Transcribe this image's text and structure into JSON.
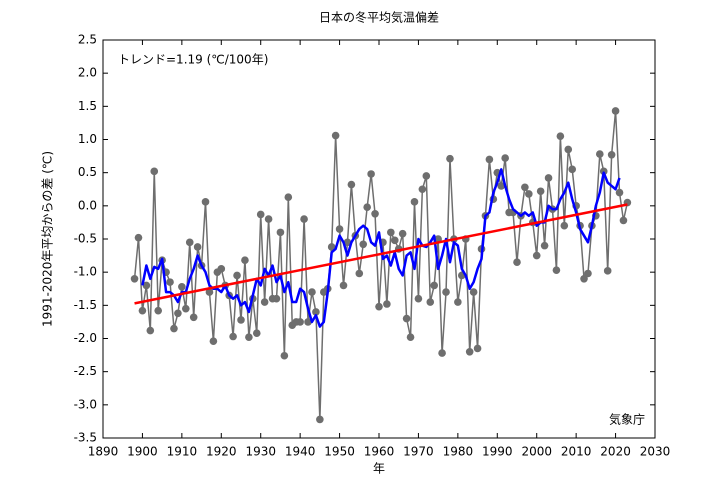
{
  "chart_data": {
    "type": "line",
    "title": "日本の冬平均気温偏差",
    "xlabel": "年",
    "ylabel": "1991-2020年平均からの差 (℃)",
    "annotations": [
      "トレンド=1.19 (℃/100年)",
      "気象庁"
    ],
    "x": [
      1898,
      1899,
      1900,
      1901,
      1902,
      1903,
      1904,
      1905,
      1906,
      1907,
      1908,
      1909,
      1910,
      1911,
      1912,
      1913,
      1914,
      1915,
      1916,
      1917,
      1918,
      1919,
      1920,
      1921,
      1922,
      1923,
      1924,
      1925,
      1926,
      1927,
      1928,
      1929,
      1930,
      1931,
      1932,
      1933,
      1934,
      1935,
      1936,
      1937,
      1938,
      1939,
      1940,
      1941,
      1942,
      1943,
      1944,
      1945,
      1946,
      1947,
      1948,
      1949,
      1950,
      1951,
      1952,
      1953,
      1954,
      1955,
      1956,
      1957,
      1958,
      1959,
      1960,
      1961,
      1962,
      1963,
      1964,
      1965,
      1966,
      1967,
      1968,
      1969,
      1970,
      1971,
      1972,
      1973,
      1974,
      1975,
      1976,
      1977,
      1978,
      1979,
      1980,
      1981,
      1982,
      1983,
      1984,
      1985,
      1986,
      1987,
      1988,
      1989,
      1990,
      1991,
      1992,
      1993,
      1994,
      1995,
      1996,
      1997,
      1998,
      1999,
      2000,
      2001,
      2002,
      2003,
      2004,
      2005,
      2006,
      2007,
      2008,
      2009,
      2010,
      2011,
      2012,
      2013,
      2014,
      2015,
      2016,
      2017,
      2018,
      2019,
      2020,
      2021,
      2022,
      2023
    ],
    "series": [
      {
        "color": "#6e6e6e",
        "values": [
          -1.1,
          -0.48,
          -1.58,
          -1.2,
          -1.88,
          0.52,
          -1.58,
          -0.82,
          -1.0,
          -1.15,
          -1.85,
          -1.62,
          -1.22,
          -1.55,
          -0.55,
          -1.68,
          -0.62,
          -0.9,
          0.06,
          -1.3,
          -2.04,
          -1.0,
          -0.95,
          -1.2,
          -1.35,
          -1.97,
          -1.05,
          -1.72,
          -0.82,
          -1.98,
          -1.4,
          -1.92,
          -0.13,
          -1.45,
          -0.2,
          -1.4,
          -1.4,
          -0.4,
          -2.26,
          0.13,
          -1.8,
          -1.75,
          -1.75,
          -0.2,
          -1.75,
          -1.3,
          -1.6,
          -3.22,
          -1.3,
          -1.25,
          -0.62,
          1.06,
          -0.35,
          -1.2,
          -0.55,
          0.32,
          -0.45,
          -1.02,
          -0.58,
          -0.02,
          0.48,
          -0.12,
          -1.52,
          -0.55,
          -1.48,
          -0.4,
          -0.52,
          -0.65,
          -0.42,
          -1.7,
          -1.98,
          0.06,
          -1.4,
          0.25,
          0.45,
          -1.45,
          -1.2,
          -0.5,
          -2.22,
          -1.3,
          0.71,
          -0.5,
          -1.45,
          -1.05,
          -0.5,
          -2.2,
          -1.3,
          -2.15,
          -0.65,
          -0.15,
          0.7,
          0.1,
          0.5,
          0.3,
          0.72,
          -0.1,
          -0.1,
          -0.85,
          -0.15,
          0.28,
          0.18,
          -0.25,
          -0.75,
          0.22,
          -0.6,
          0.42,
          -0.05,
          -0.97,
          1.05,
          -0.3,
          0.85,
          0.55,
          0.0,
          -0.3,
          -1.1,
          -1.02,
          -0.3,
          -0.15,
          0.78,
          0.52,
          -0.98,
          0.77,
          1.43,
          0.2,
          -0.22,
          0.05
        ]
      },
      {
        "color": "#0000ff",
        "values": [
          null,
          null,
          -1.2,
          -0.9,
          -1.1,
          -0.92,
          -0.95,
          -0.8,
          -1.3,
          -1.3,
          -1.35,
          -1.45,
          -1.3,
          -1.3,
          -1.1,
          -0.95,
          -0.75,
          -0.9,
          -1.0,
          -1.2,
          -1.25,
          -1.25,
          -1.3,
          -1.2,
          -1.35,
          -1.4,
          -1.35,
          -1.5,
          -1.45,
          -1.6,
          -1.35,
          -1.1,
          -1.2,
          -0.95,
          -1.05,
          -0.9,
          -1.15,
          -1.05,
          -1.3,
          -1.15,
          -1.45,
          -1.45,
          -1.25,
          -1.3,
          -1.55,
          -1.75,
          -1.65,
          -1.82,
          -1.75,
          -1.3,
          -0.7,
          -0.65,
          -0.45,
          -0.55,
          -0.75,
          -0.55,
          -0.45,
          -0.35,
          -0.3,
          -0.35,
          -0.55,
          -0.6,
          -0.4,
          -0.8,
          -0.75,
          -0.9,
          -0.7,
          -0.95,
          -1.05,
          -0.75,
          -0.7,
          -0.95,
          -0.5,
          -0.6,
          -0.62,
          -0.55,
          -0.45,
          -0.95,
          -0.75,
          -0.5,
          -0.85,
          -0.55,
          -0.6,
          -0.95,
          -1.05,
          -1.25,
          -1.15,
          -0.95,
          -0.8,
          -0.15,
          -0.1,
          0.2,
          0.35,
          0.55,
          0.3,
          0.1,
          -0.05,
          -0.1,
          -0.15,
          -0.1,
          -0.15,
          -0.1,
          -0.3,
          -0.25,
          -0.25,
          0.0,
          -0.05,
          -0.05,
          0.1,
          0.2,
          0.35,
          0.1,
          -0.1,
          -0.35,
          -0.45,
          -0.55,
          -0.3,
          0.0,
          0.2,
          0.5,
          0.35,
          0.3,
          0.25,
          0.42,
          null,
          null
        ]
      }
    ],
    "trend": {
      "x": [
        1898,
        2023
      ],
      "values": [
        -1.47,
        0.02
      ],
      "color": "#ff0000"
    },
    "xlim": [
      1890,
      2030
    ],
    "xticks": [
      1890,
      1900,
      1910,
      1920,
      1930,
      1940,
      1950,
      1960,
      1970,
      1980,
      1990,
      2000,
      2010,
      2020,
      2030
    ],
    "ylim": [
      -3.5,
      2.5
    ],
    "yticks": [
      2.5,
      {
        "value": 2,
        "label": "2.0"
      },
      1.5,
      {
        "value": 1,
        "label": "1.0"
      },
      0.5,
      {
        "value": 0,
        "label": "0.0"
      },
      -0.5,
      {
        "value": -1,
        "label": "-1.0"
      },
      -1.5,
      {
        "value": -2,
        "label": "-2.0"
      },
      -2.5,
      {
        "value": -3,
        "label": "-3.0"
      },
      -3.5
    ],
    "grid": false
  }
}
